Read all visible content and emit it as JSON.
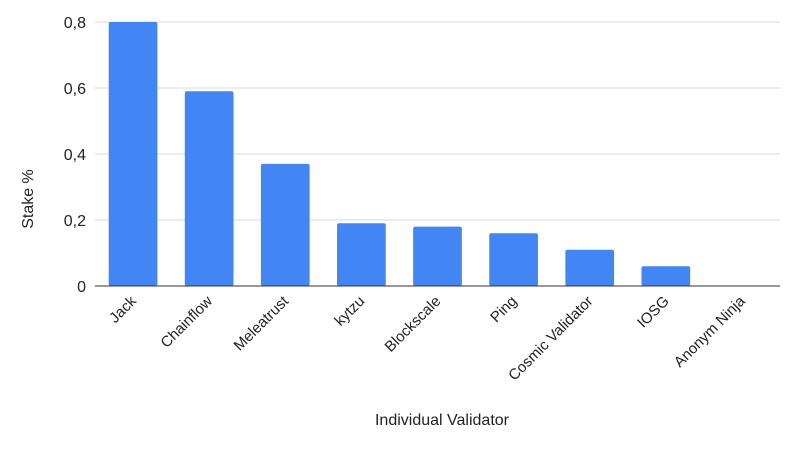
{
  "chart_data": {
    "type": "bar",
    "title": "",
    "xlabel": "Individual Validator",
    "ylabel": "Stake %",
    "categories": [
      "Jack",
      "Chainflow",
      "Meleatrust",
      "kytzu",
      "Blockscale",
      "Ping",
      "Cosmic Validator",
      "IOSG",
      "Anonym Ninja"
    ],
    "values": [
      0.8,
      0.59,
      0.37,
      0.19,
      0.18,
      0.16,
      0.11,
      0.06,
      0
    ],
    "ylim": [
      0,
      0.8
    ],
    "yticks": [
      0,
      0.2,
      0.4,
      0.6,
      0.8
    ],
    "ytick_labels": [
      "0",
      "0,2",
      "0,4",
      "0,6",
      "0,8"
    ],
    "grid": true,
    "legend": "none",
    "bar_color": "#4285f4"
  }
}
